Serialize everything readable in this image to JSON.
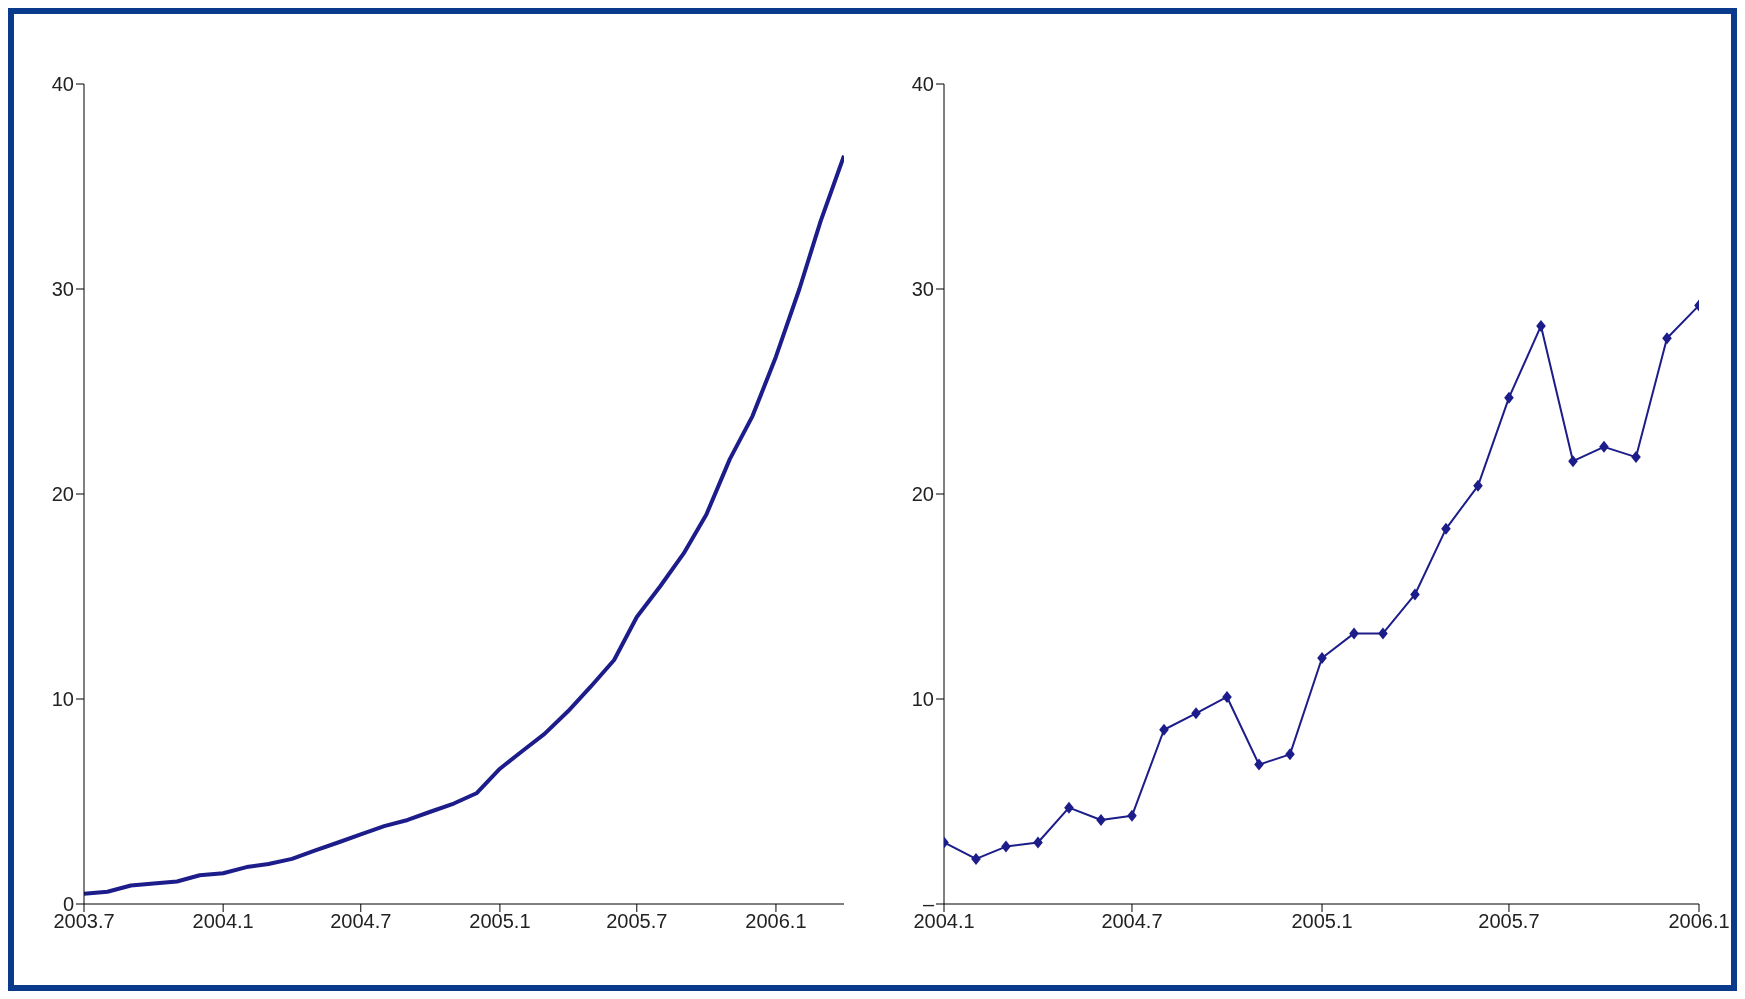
{
  "chart_data": [
    {
      "type": "line",
      "x": [
        "2003-07",
        "2003-08",
        "2003-09",
        "2003-10",
        "2003-11",
        "2003-12",
        "2004-01",
        "2004-02",
        "2004-03",
        "2004-04",
        "2004-05",
        "2004-06",
        "2004-07",
        "2004-08",
        "2004-09",
        "2004-10",
        "2004-11",
        "2004-12",
        "2005-01",
        "2005-02",
        "2005-03",
        "2005-04",
        "2005-05",
        "2005-06",
        "2005-07",
        "2005-08",
        "2005-09",
        "2005-10",
        "2005-11",
        "2005-12",
        "2006-01",
        "2006-02",
        "2006-03",
        "2006-04"
      ],
      "series": [
        {
          "color": "#1c1c8a",
          "values": [
            0.5,
            0.6,
            0.9,
            1.0,
            1.1,
            1.4,
            1.5,
            1.8,
            1.95,
            2.2,
            2.6,
            3.0,
            3.4,
            3.8,
            4.1,
            4.5,
            4.9,
            5.4,
            6.6,
            7.5,
            8.3,
            9.4,
            10.6,
            11.9,
            14.0,
            15.5,
            17.1,
            19.0,
            21.7,
            23.8,
            26.7,
            30.0,
            33.3,
            36.5
          ]
        }
      ],
      "xlim": [
        "2003-07",
        "2006-04"
      ],
      "xticks": [
        {
          "value": "2003-07",
          "label": "2003.7"
        },
        {
          "value": "2004-01",
          "label": "2004.1"
        },
        {
          "value": "2004-07",
          "label": "2004.7"
        },
        {
          "value": "2005-01",
          "label": "2005.1"
        },
        {
          "value": "2005-07",
          "label": "2005.7"
        },
        {
          "value": "2006-01",
          "label": "2006.1"
        }
      ],
      "ylim": [
        0,
        40
      ],
      "yticks": [
        0,
        10,
        20,
        30,
        40
      ],
      "grid": false,
      "marker": "none",
      "line_style": "solid"
    },
    {
      "type": "line",
      "x": [
        "2004-01",
        "2004-02",
        "2004-03",
        "2004-04",
        "2004-05",
        "2004-06",
        "2004-07",
        "2004-08",
        "2004-09",
        "2004-10",
        "2004-11",
        "2004-12",
        "2005-01",
        "2005-02",
        "2005-03",
        "2005-04",
        "2005-05",
        "2005-06",
        "2005-07",
        "2005-08",
        "2005-09",
        "2005-10",
        "2005-11",
        "2005-12",
        "2006-01"
      ],
      "series": [
        {
          "color": "#1c1c8a",
          "values": [
            3.0,
            2.2,
            2.8,
            3.0,
            4.7,
            4.1,
            4.3,
            8.5,
            9.3,
            10.1,
            6.8,
            7.3,
            12.0,
            13.2,
            13.2,
            15.1,
            18.3,
            20.4,
            24.7,
            28.2,
            21.6,
            22.3,
            21.8,
            27.6,
            29.2
          ]
        }
      ],
      "xlim": [
        "2004-01",
        "2006-01"
      ],
      "xticks": [
        {
          "value": "2004-01",
          "label": "2004.1"
        },
        {
          "value": "2004-07",
          "label": "2004.7"
        },
        {
          "value": "2005-01",
          "label": "2005.1"
        },
        {
          "value": "2005-07",
          "label": "2005.7"
        },
        {
          "value": "2006-01",
          "label": "2006.1"
        }
      ],
      "ylim": [
        0,
        40
      ],
      "yticks": [
        {
          "value": 0,
          "label": "–"
        },
        10,
        20,
        30,
        40
      ],
      "grid": false,
      "marker": "diamond",
      "line_style": "solid"
    }
  ]
}
